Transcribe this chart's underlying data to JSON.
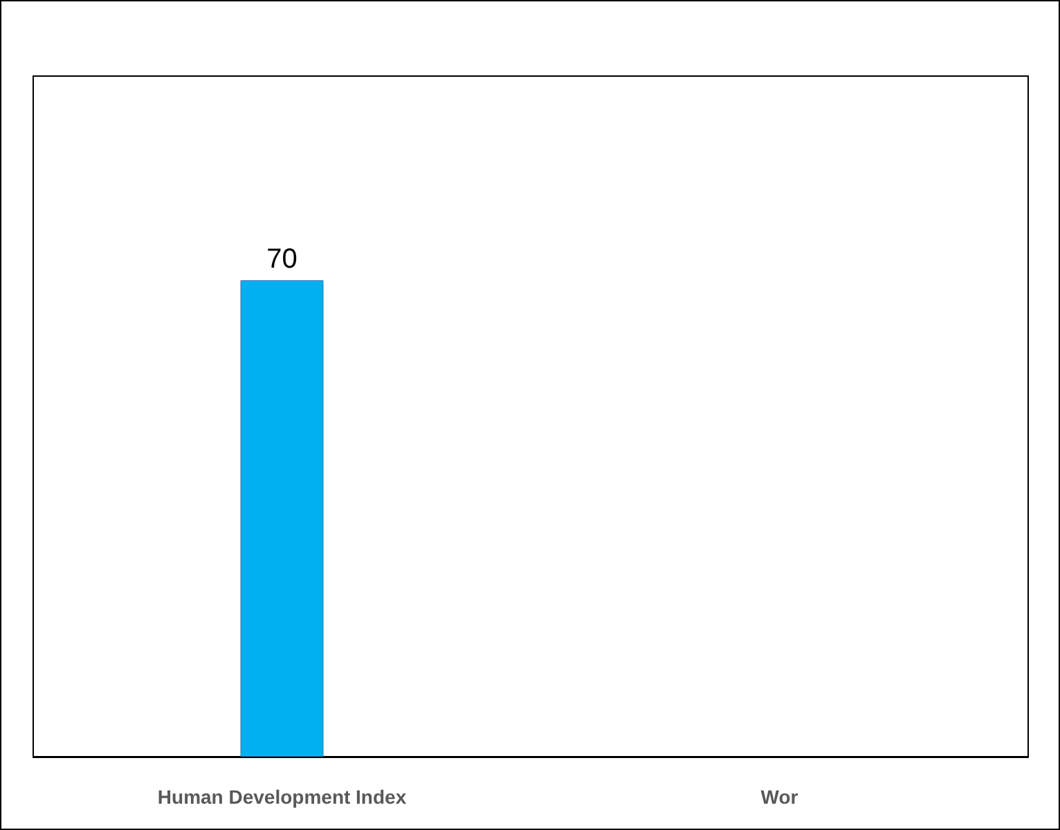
{
  "chart_data": {
    "type": "bar",
    "categories": [
      "Human Development Index",
      "Wor"
    ],
    "values": [
      70,
      null
    ],
    "color": "#00b0f0",
    "ylim": [
      0,
      100
    ],
    "tick_labels": "x",
    "data_labels": true
  }
}
